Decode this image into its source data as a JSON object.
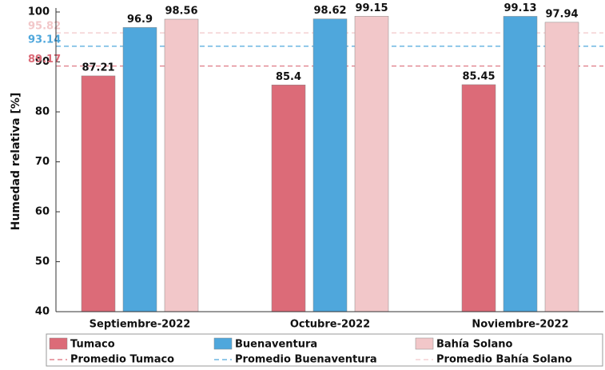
{
  "chart_data": {
    "type": "bar",
    "y_label": "Humedad relativa [%]",
    "categories": [
      "Septiembre-2022",
      "Octubre-2022",
      "Noviembre-2022"
    ],
    "series": [
      {
        "name": "Tumaco",
        "color": "#dc6b78",
        "values": [
          87.21,
          85.4,
          85.45
        ]
      },
      {
        "name": "Buenaventura",
        "color": "#4fa7dc",
        "values": [
          96.9,
          98.62,
          99.13
        ]
      },
      {
        "name": "Bahía Solano",
        "color": "#f2c7c9",
        "values": [
          98.56,
          99.15,
          97.94
        ]
      }
    ],
    "reference_lines": [
      {
        "name": "Promedio Tumaco",
        "color": "#dc6b78",
        "value": 89.17
      },
      {
        "name": "Promedio Buenaventura",
        "color": "#4fa7dc",
        "value": 93.14
      },
      {
        "name": "Promedio Bahía Solano",
        "color": "#f2c7c9",
        "value": 95.82
      }
    ],
    "ylim": [
      40,
      100
    ],
    "yticks": [
      40,
      50,
      60,
      70,
      80,
      90,
      100
    ]
  }
}
